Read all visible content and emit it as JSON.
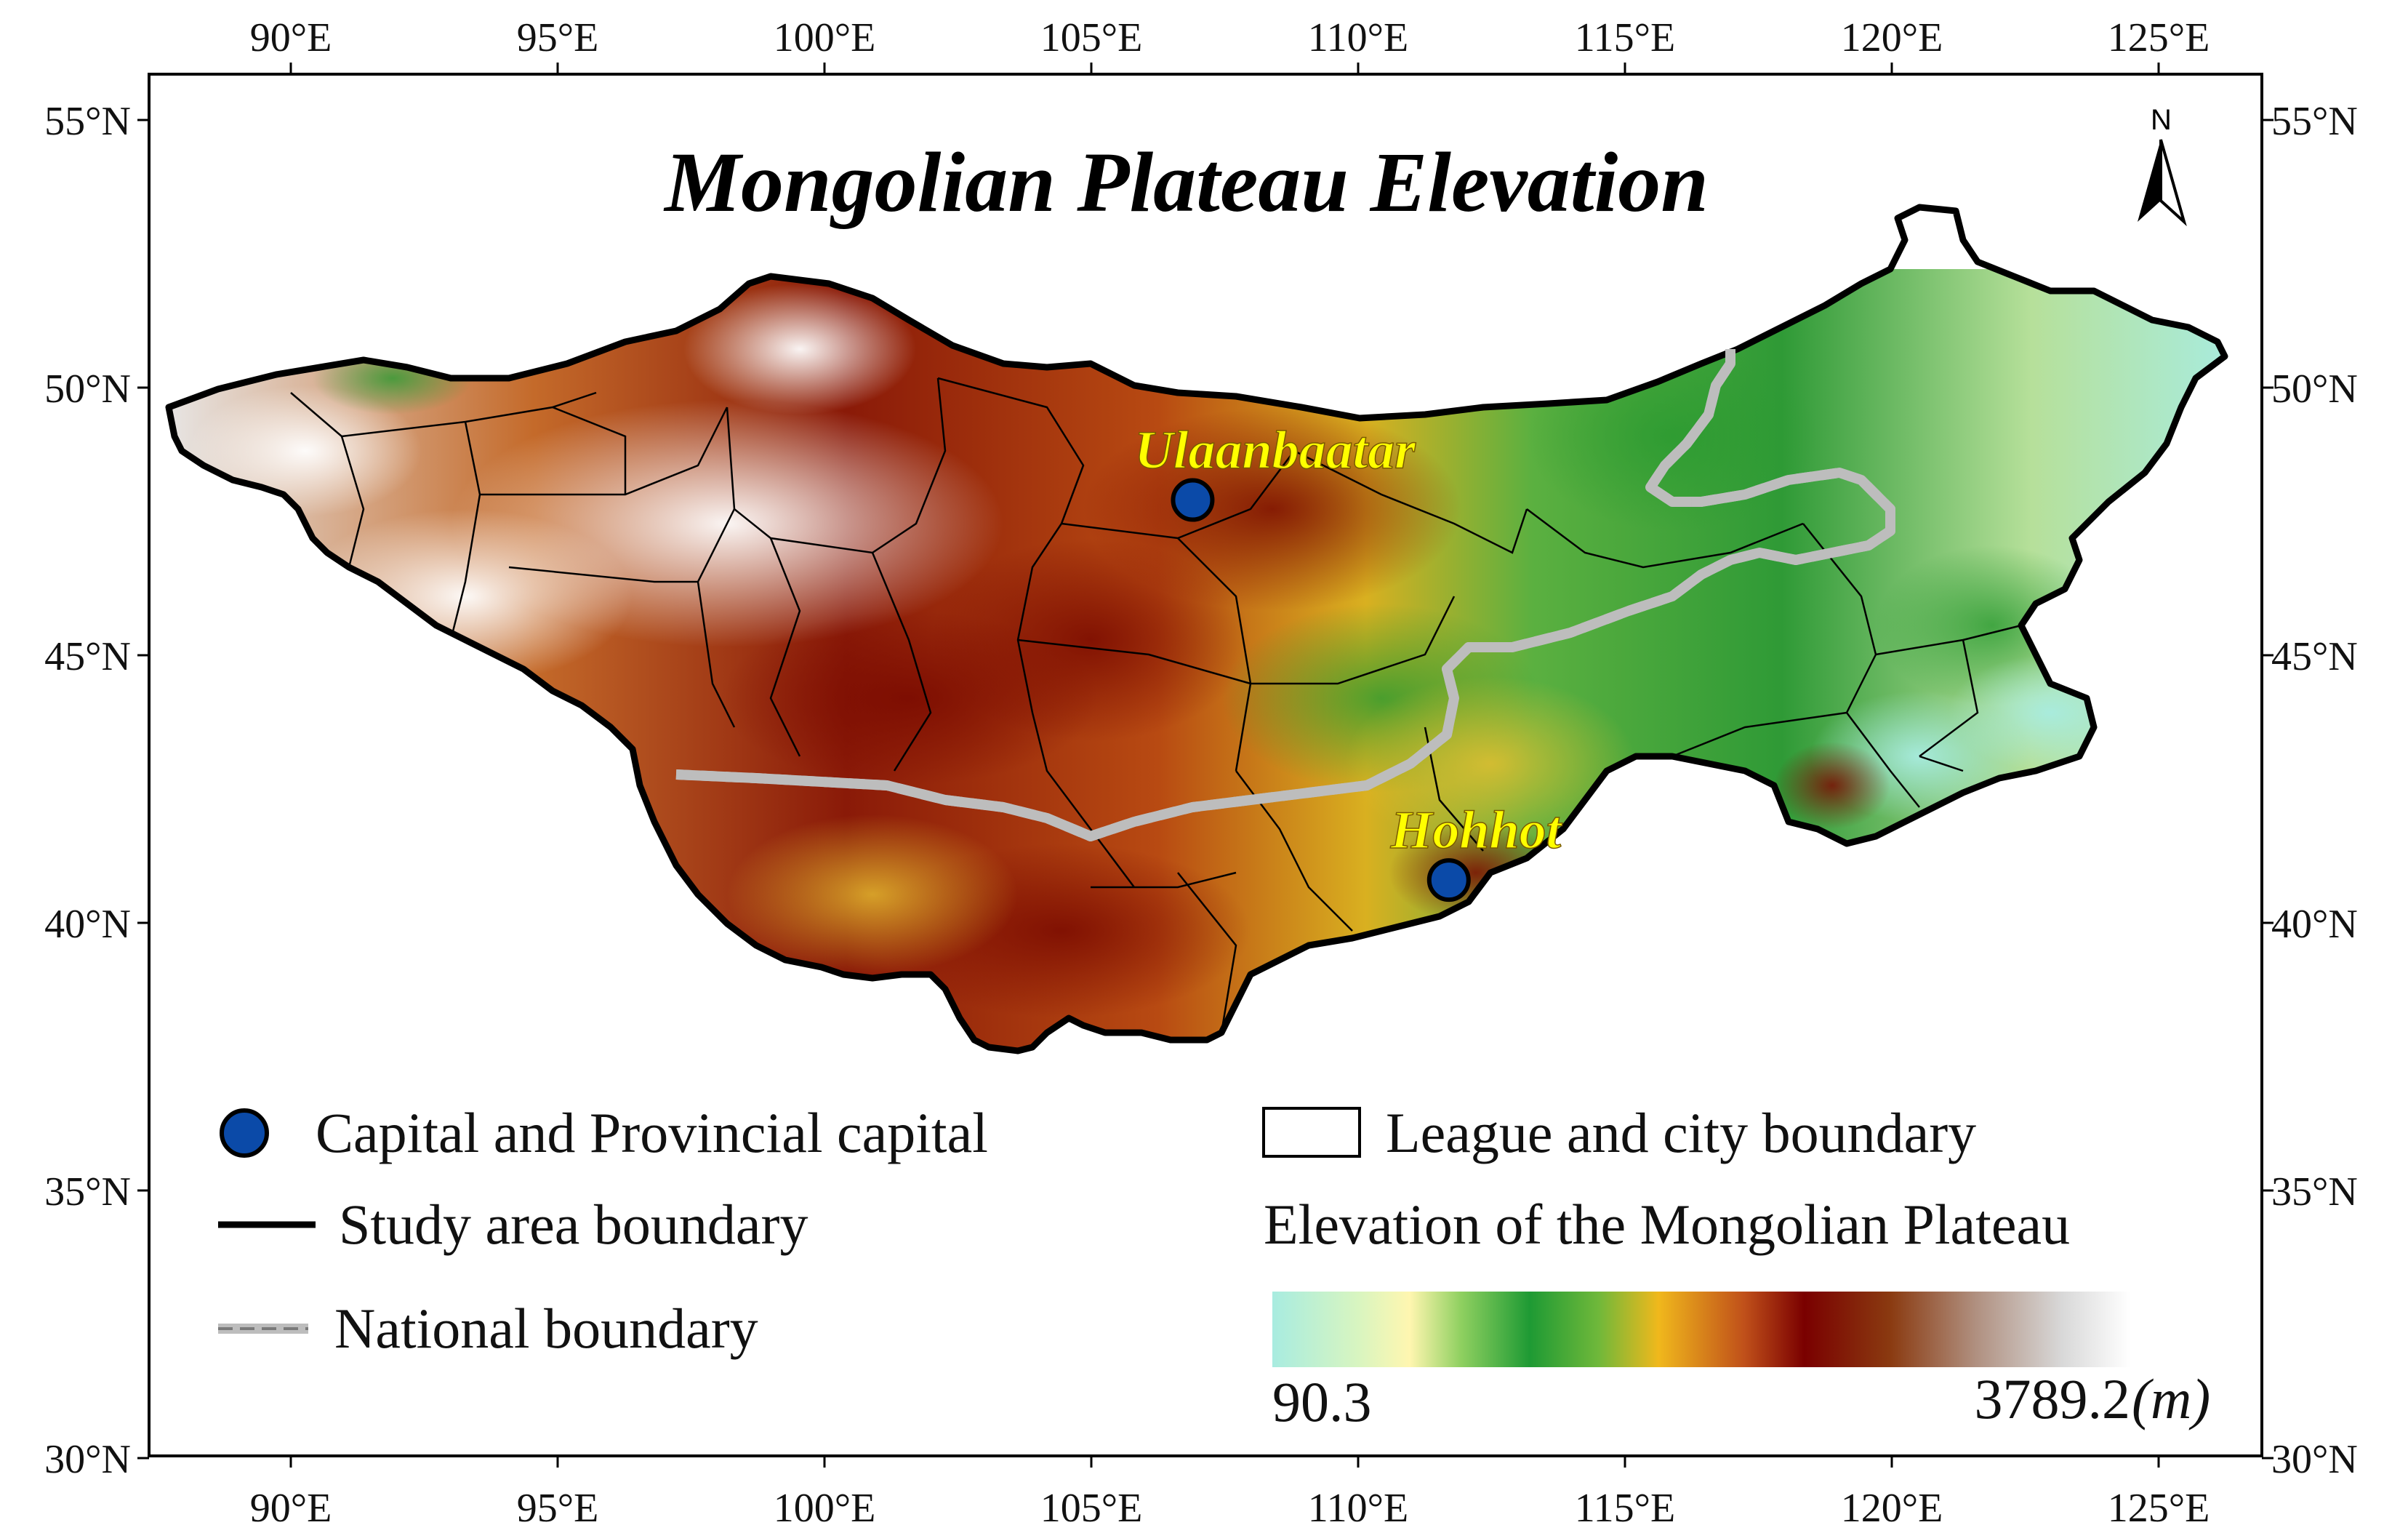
{
  "map": {
    "title": "Mongolian Plateau Elevation",
    "lon_ticks": [
      90,
      95,
      100,
      105,
      110,
      115,
      120,
      125
    ],
    "lat_ticks": [
      55,
      50,
      45,
      40,
      35,
      30
    ],
    "lon_labels": [
      "90°E",
      "95°E",
      "100°E",
      "105°E",
      "110°E",
      "115°E",
      "120°E",
      "125°E"
    ],
    "lat_labels": [
      "55°N",
      "50°N",
      "45°N",
      "40°N",
      "35°N",
      "30°N"
    ],
    "north_label": "N",
    "cities": [
      {
        "name": "Ulaanbaatar",
        "lon": 106.9,
        "lat": 47.9
      },
      {
        "name": "Hohhot",
        "lon": 111.7,
        "lat": 40.8
      }
    ]
  },
  "legend": {
    "capital_label": "Capital and Provincial capital",
    "study_area_label": "Study area boundary",
    "national_label": "National boundary",
    "league_label": "League and city boundary",
    "elevation_title": "Elevation of the Mongolian Plateau",
    "min_value": "90.3",
    "max_value": "3789.2",
    "unit": "(m)"
  },
  "colors": {
    "capital_marker": "#0b4aa8",
    "national_boundary": "#b8b8b8",
    "city_label": "#ffff00"
  }
}
